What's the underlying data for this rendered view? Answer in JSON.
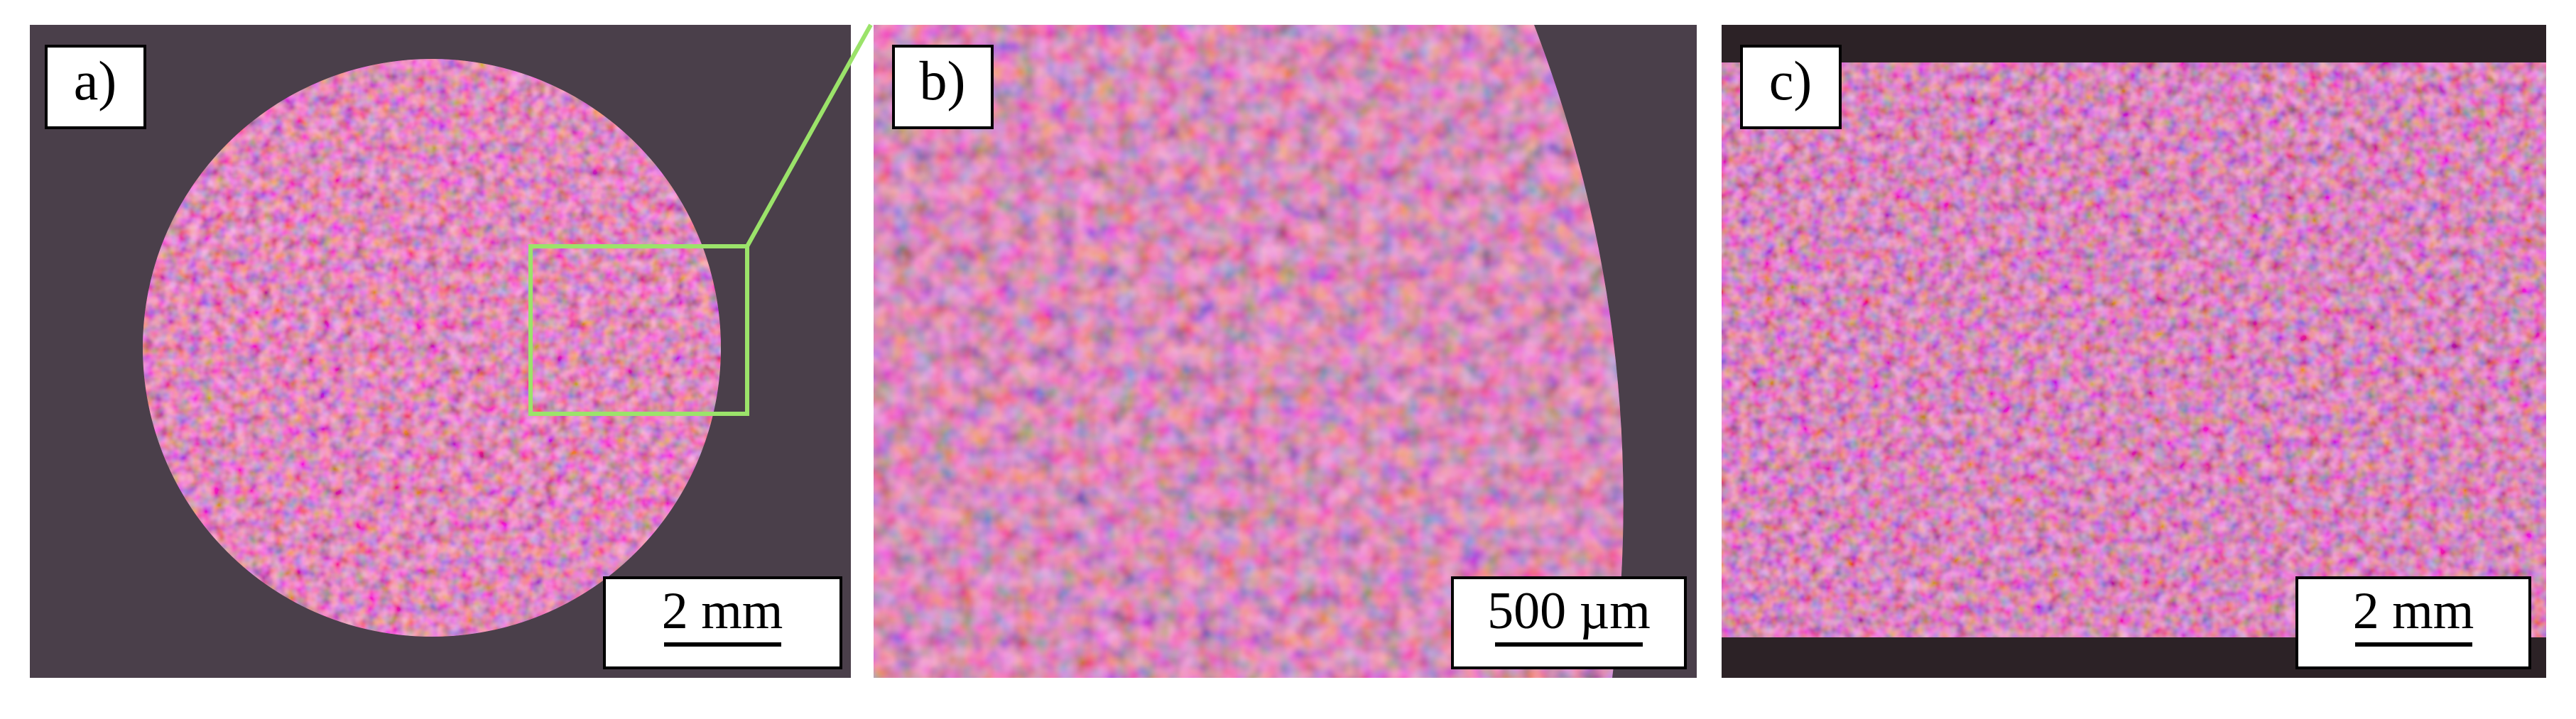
{
  "panels": [
    {
      "label": "a)",
      "scale_bar": "2 mm"
    },
    {
      "label": "b)",
      "scale_bar": "500 µm"
    },
    {
      "label": "c)",
      "scale_bar": "2 mm"
    }
  ]
}
